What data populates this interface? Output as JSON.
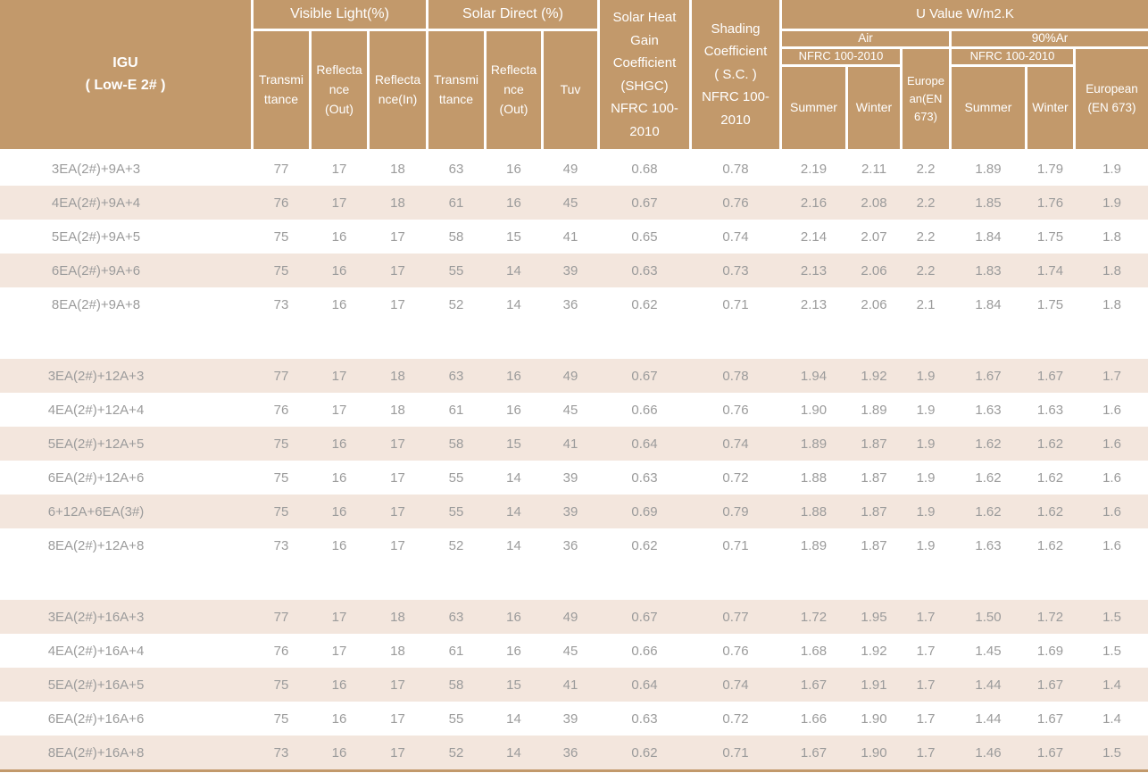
{
  "colors": {
    "header_bg": "#C2996B",
    "header_text": "#FFFFFF",
    "stripe_bg": "#F3E6DD",
    "text_gray": "#9B9B9B",
    "bottom_border": "#C2996B"
  },
  "header": {
    "igu": "IGU\n( Low-E 2# )",
    "visible_light": "Visible Light(%)",
    "solar_direct": "Solar Direct (%)",
    "vl_transmittance": "Transmi\nttance",
    "vl_reflectance_out": "Reflecta\nnce\n(Out)",
    "vl_reflectance_in": "Reflecta\nnce(In)",
    "sd_transmittance": "Transmi\nttance",
    "sd_reflectance_out": "Reflecta\nnce\n(Out)",
    "tuv": "Tuv",
    "shgc": "Solar Heat\nGain\nCoefficient\n(SHGC)\nNFRC 100-\n2010",
    "shading": "Shading\nCoefficient\n( S.C. )\nNFRC 100-\n2010",
    "u_value": "U Value W/m2.K",
    "air": "Air",
    "argon": "90%Ar",
    "nfrc_air": "NFRC 100-2010",
    "nfrc_argon": "NFRC 100-2010",
    "european_air": "Europe\nan(EN\n673)",
    "european_argon": "European\n(EN 673)",
    "air_summer": "Summer",
    "air_winter": "Winter",
    "argon_summer": "Summer",
    "argon_winter": "Winter"
  },
  "blocks": [
    {
      "rows": [
        {
          "label": "3EA(2#)+9A+3",
          "striped": false,
          "values": [
            "77",
            "17",
            "18",
            "63",
            "16",
            "49",
            "0.68",
            "0.78",
            "2.19",
            "2.11",
            "2.2",
            "1.89",
            "1.79",
            "1.9"
          ]
        },
        {
          "label": "4EA(2#)+9A+4",
          "striped": true,
          "values": [
            "76",
            "17",
            "18",
            "61",
            "16",
            "45",
            "0.67",
            "0.76",
            "2.16",
            "2.08",
            "2.2",
            "1.85",
            "1.76",
            "1.9"
          ]
        },
        {
          "label": "5EA(2#)+9A+5",
          "striped": false,
          "values": [
            "75",
            "16",
            "17",
            "58",
            "15",
            "41",
            "0.65",
            "0.74",
            "2.14",
            "2.07",
            "2.2",
            "1.84",
            "1.75",
            "1.8"
          ]
        },
        {
          "label": "6EA(2#)+9A+6",
          "striped": true,
          "values": [
            "75",
            "16",
            "17",
            "55",
            "14",
            "39",
            "0.63",
            "0.73",
            "2.13",
            "2.06",
            "2.2",
            "1.83",
            "1.74",
            "1.8"
          ]
        },
        {
          "label": "8EA(2#)+9A+8",
          "striped": false,
          "values": [
            "73",
            "16",
            "17",
            "52",
            "14",
            "36",
            "0.62",
            "0.71",
            "2.13",
            "2.06",
            "2.1",
            "1.84",
            "1.75",
            "1.8"
          ]
        }
      ]
    },
    {
      "rows": [
        {
          "label": "3EA(2#)+12A+3",
          "striped": true,
          "values": [
            "77",
            "17",
            "18",
            "63",
            "16",
            "49",
            "0.67",
            "0.78",
            "1.94",
            "1.92",
            "1.9",
            "1.67",
            "1.67",
            "1.7"
          ]
        },
        {
          "label": "4EA(2#)+12A+4",
          "striped": false,
          "values": [
            "76",
            "17",
            "18",
            "61",
            "16",
            "45",
            "0.66",
            "0.76",
            "1.90",
            "1.89",
            "1.9",
            "1.63",
            "1.63",
            "1.6"
          ]
        },
        {
          "label": "5EA(2#)+12A+5",
          "striped": true,
          "values": [
            "75",
            "16",
            "17",
            "58",
            "15",
            "41",
            "0.64",
            "0.74",
            "1.89",
            "1.87",
            "1.9",
            "1.62",
            "1.62",
            "1.6"
          ]
        },
        {
          "label": "6EA(2#)+12A+6",
          "striped": false,
          "values": [
            "75",
            "16",
            "17",
            "55",
            "14",
            "39",
            "0.63",
            "0.72",
            "1.88",
            "1.87",
            "1.9",
            "1.62",
            "1.62",
            "1.6"
          ]
        },
        {
          "label": "6+12A+6EA(3#)",
          "striped": true,
          "values": [
            "75",
            "16",
            "17",
            "55",
            "14",
            "39",
            "0.69",
            "0.79",
            "1.88",
            "1.87",
            "1.9",
            "1.62",
            "1.62",
            "1.6"
          ]
        },
        {
          "label": "8EA(2#)+12A+8",
          "striped": false,
          "values": [
            "73",
            "16",
            "17",
            "52",
            "14",
            "36",
            "0.62",
            "0.71",
            "1.89",
            "1.87",
            "1.9",
            "1.63",
            "1.62",
            "1.6"
          ]
        }
      ]
    },
    {
      "rows": [
        {
          "label": "3EA(2#)+16A+3",
          "striped": true,
          "values": [
            "77",
            "17",
            "18",
            "63",
            "16",
            "49",
            "0.67",
            "0.77",
            "1.72",
            "1.95",
            "1.7",
            "1.50",
            "1.72",
            "1.5"
          ]
        },
        {
          "label": "4EA(2#)+16A+4",
          "striped": false,
          "values": [
            "76",
            "17",
            "18",
            "61",
            "16",
            "45",
            "0.66",
            "0.76",
            "1.68",
            "1.92",
            "1.7",
            "1.45",
            "1.69",
            "1.5"
          ]
        },
        {
          "label": "5EA(2#)+16A+5",
          "striped": true,
          "values": [
            "75",
            "16",
            "17",
            "58",
            "15",
            "41",
            "0.64",
            "0.74",
            "1.67",
            "1.91",
            "1.7",
            "1.44",
            "1.67",
            "1.4"
          ]
        },
        {
          "label": "6EA(2#)+16A+6",
          "striped": false,
          "values": [
            "75",
            "16",
            "17",
            "55",
            "14",
            "39",
            "0.63",
            "0.72",
            "1.66",
            "1.90",
            "1.7",
            "1.44",
            "1.67",
            "1.4"
          ]
        },
        {
          "label": "8EA(2#)+16A+8",
          "striped": true,
          "values": [
            "73",
            "16",
            "17",
            "52",
            "14",
            "36",
            "0.62",
            "0.71",
            "1.67",
            "1.90",
            "1.7",
            "1.46",
            "1.67",
            "1.5"
          ]
        }
      ]
    }
  ]
}
